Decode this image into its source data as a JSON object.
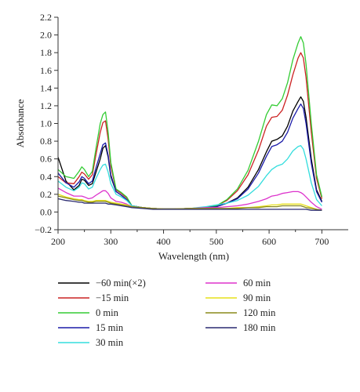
{
  "chart_data": {
    "type": "line",
    "title": "",
    "xlabel": "Wavelength (nm)",
    "ylabel": "Absorbance",
    "xlim": [
      200,
      750
    ],
    "ylim": [
      -0.2,
      2.2
    ],
    "xticks": [
      200,
      300,
      400,
      500,
      600,
      700
    ],
    "xtick_labels": [
      "200",
      "300",
      "400",
      "500",
      "600",
      "700"
    ],
    "yticks": [
      -0.2,
      0.0,
      0.2,
      0.4,
      0.6,
      0.8,
      1.0,
      1.2,
      1.4,
      1.6,
      1.8,
      2.0,
      2.2
    ],
    "ytick_labels": [
      "−0.2",
      "0.0",
      "0.2",
      "0.4",
      "0.6",
      "0.8",
      "1.0",
      "1.2",
      "1.4",
      "1.6",
      "1.8",
      "2.0",
      "2.2"
    ],
    "grid": false,
    "legend_position": "bottom",
    "x": [
      200,
      215,
      230,
      240,
      245,
      250,
      258,
      265,
      272,
      280,
      285,
      290,
      295,
      300,
      310,
      320,
      330,
      340,
      360,
      380,
      400,
      420,
      450,
      480,
      500,
      520,
      540,
      560,
      580,
      595,
      605,
      615,
      625,
      635,
      645,
      655,
      660,
      665,
      670,
      680,
      690,
      700
    ],
    "series": [
      {
        "name": "−60 min(×2)",
        "color": "#000000",
        "values": [
          0.62,
          0.35,
          0.25,
          0.3,
          0.37,
          0.36,
          0.3,
          0.32,
          0.45,
          0.6,
          0.72,
          0.75,
          0.62,
          0.4,
          0.23,
          0.19,
          0.14,
          0.07,
          0.05,
          0.04,
          0.035,
          0.035,
          0.04,
          0.05,
          0.06,
          0.1,
          0.16,
          0.28,
          0.48,
          0.68,
          0.8,
          0.82,
          0.86,
          0.97,
          1.14,
          1.25,
          1.3,
          1.25,
          1.07,
          0.6,
          0.25,
          0.12
        ]
      },
      {
        "name": "−15 min",
        "color": "#cc2222",
        "values": [
          0.4,
          0.33,
          0.32,
          0.4,
          0.45,
          0.43,
          0.37,
          0.42,
          0.65,
          0.9,
          1.01,
          1.03,
          0.82,
          0.52,
          0.25,
          0.21,
          0.16,
          0.07,
          0.05,
          0.04,
          0.035,
          0.035,
          0.04,
          0.05,
          0.07,
          0.13,
          0.24,
          0.42,
          0.7,
          0.97,
          1.07,
          1.08,
          1.15,
          1.32,
          1.55,
          1.74,
          1.8,
          1.74,
          1.52,
          0.9,
          0.38,
          0.15
        ]
      },
      {
        "name": "0 min",
        "color": "#33cc33",
        "values": [
          0.48,
          0.4,
          0.38,
          0.46,
          0.51,
          0.48,
          0.4,
          0.46,
          0.72,
          1.0,
          1.1,
          1.13,
          0.9,
          0.56,
          0.26,
          0.22,
          0.17,
          0.07,
          0.05,
          0.04,
          0.035,
          0.035,
          0.04,
          0.05,
          0.07,
          0.14,
          0.26,
          0.47,
          0.8,
          1.1,
          1.21,
          1.2,
          1.28,
          1.46,
          1.72,
          1.91,
          1.98,
          1.91,
          1.67,
          1.0,
          0.42,
          0.17
        ]
      },
      {
        "name": "15 min",
        "color": "#1a1aa8",
        "values": [
          0.44,
          0.33,
          0.28,
          0.34,
          0.4,
          0.38,
          0.32,
          0.35,
          0.5,
          0.66,
          0.76,
          0.78,
          0.64,
          0.42,
          0.23,
          0.19,
          0.14,
          0.07,
          0.05,
          0.04,
          0.035,
          0.035,
          0.04,
          0.05,
          0.06,
          0.1,
          0.15,
          0.26,
          0.44,
          0.63,
          0.74,
          0.76,
          0.8,
          0.9,
          1.06,
          1.17,
          1.22,
          1.17,
          1.0,
          0.55,
          0.23,
          0.11
        ]
      },
      {
        "name": "30 min",
        "color": "#33dddd",
        "values": [
          0.35,
          0.28,
          0.24,
          0.28,
          0.33,
          0.32,
          0.26,
          0.28,
          0.38,
          0.48,
          0.53,
          0.54,
          0.45,
          0.32,
          0.2,
          0.17,
          0.13,
          0.07,
          0.05,
          0.04,
          0.035,
          0.035,
          0.04,
          0.06,
          0.08,
          0.1,
          0.13,
          0.19,
          0.29,
          0.41,
          0.48,
          0.52,
          0.54,
          0.6,
          0.69,
          0.74,
          0.75,
          0.71,
          0.6,
          0.33,
          0.14,
          0.07
        ]
      },
      {
        "name": "60 min",
        "color": "#dd33cc",
        "values": [
          0.27,
          0.22,
          0.18,
          0.18,
          0.18,
          0.17,
          0.15,
          0.16,
          0.19,
          0.22,
          0.24,
          0.24,
          0.21,
          0.16,
          0.12,
          0.11,
          0.09,
          0.06,
          0.05,
          0.04,
          0.035,
          0.035,
          0.04,
          0.05,
          0.05,
          0.06,
          0.07,
          0.09,
          0.12,
          0.15,
          0.18,
          0.19,
          0.21,
          0.22,
          0.23,
          0.23,
          0.22,
          0.2,
          0.17,
          0.11,
          0.06,
          0.03
        ]
      },
      {
        "name": "90 min",
        "color": "#e6e01a",
        "values": [
          0.2,
          0.17,
          0.15,
          0.14,
          0.14,
          0.13,
          0.12,
          0.12,
          0.13,
          0.13,
          0.13,
          0.13,
          0.12,
          0.11,
          0.1,
          0.09,
          0.08,
          0.06,
          0.05,
          0.04,
          0.035,
          0.035,
          0.04,
          0.04,
          0.04,
          0.04,
          0.05,
          0.05,
          0.06,
          0.07,
          0.08,
          0.08,
          0.09,
          0.09,
          0.09,
          0.09,
          0.09,
          0.08,
          0.07,
          0.05,
          0.03,
          0.02
        ]
      },
      {
        "name": "120 min",
        "color": "#8a8a1a",
        "values": [
          0.18,
          0.16,
          0.14,
          0.13,
          0.13,
          0.12,
          0.11,
          0.11,
          0.12,
          0.12,
          0.12,
          0.12,
          0.11,
          0.1,
          0.09,
          0.08,
          0.07,
          0.06,
          0.05,
          0.04,
          0.035,
          0.035,
          0.04,
          0.04,
          0.04,
          0.04,
          0.04,
          0.05,
          0.05,
          0.06,
          0.06,
          0.06,
          0.07,
          0.07,
          0.07,
          0.07,
          0.07,
          0.06,
          0.05,
          0.04,
          0.03,
          0.02
        ]
      },
      {
        "name": "180 min",
        "color": "#2a2a70",
        "values": [
          0.15,
          0.13,
          0.12,
          0.11,
          0.11,
          0.1,
          0.1,
          0.1,
          0.1,
          0.1,
          0.1,
          0.1,
          0.09,
          0.09,
          0.08,
          0.07,
          0.06,
          0.05,
          0.04,
          0.03,
          0.03,
          0.03,
          0.03,
          0.03,
          0.03,
          0.03,
          0.03,
          0.03,
          0.03,
          0.03,
          0.03,
          0.03,
          0.03,
          0.03,
          0.03,
          0.03,
          0.03,
          0.03,
          0.03,
          0.02,
          0.02,
          0.02
        ]
      }
    ]
  }
}
